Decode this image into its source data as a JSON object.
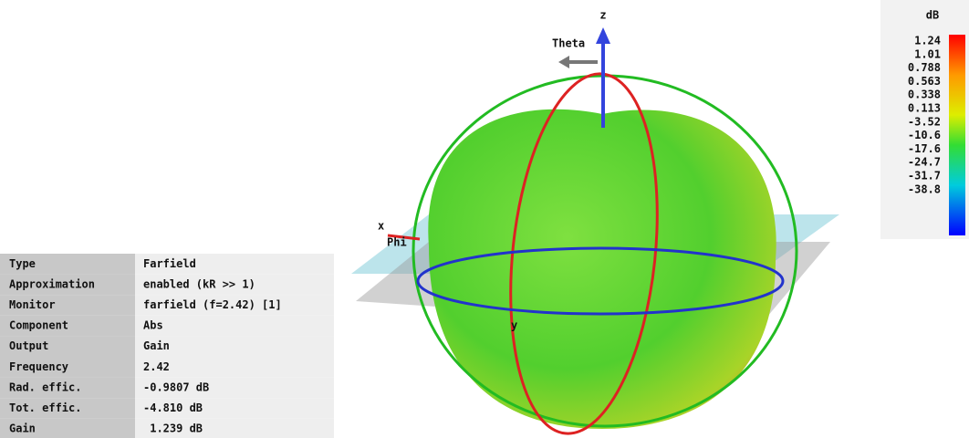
{
  "properties": {
    "rows": [
      [
        "Type",
        "Farfield"
      ],
      [
        "Approximation",
        "enabled (kR >> 1)"
      ],
      [
        "Monitor",
        "farfield (f=2.42) [1]"
      ],
      [
        "Component",
        "Abs"
      ],
      [
        "Output",
        "Gain"
      ],
      [
        "Frequency",
        "2.42"
      ],
      [
        "Rad. effic.",
        "-0.9807 dB"
      ],
      [
        "Tot. effic.",
        "-4.810 dB"
      ],
      [
        "Gain",
        " 1.239 dB"
      ]
    ]
  },
  "axes": {
    "z": "z",
    "x": "x",
    "y": "y",
    "theta": "Theta",
    "phi": "Phi"
  },
  "legend": {
    "title": "dB",
    "labels": [
      "1.24",
      "1.01",
      "0.788",
      "0.563",
      "0.338",
      "0.113",
      "-3.52",
      "-10.6",
      "-17.6",
      "-24.7",
      "-31.7",
      "-38.8"
    ]
  }
}
